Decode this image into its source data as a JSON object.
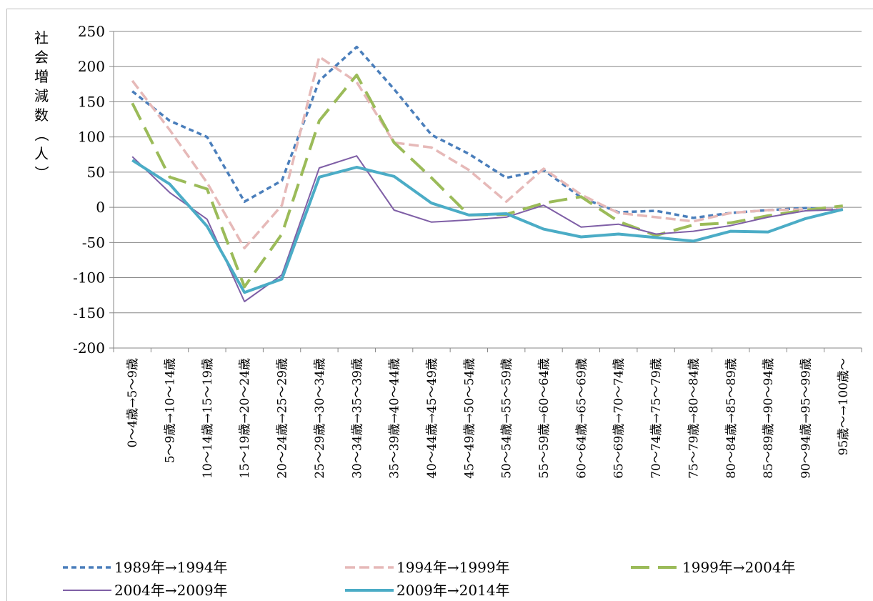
{
  "chart_data": {
    "type": "line",
    "title": "",
    "ylabel": "社会増減数（人）",
    "xlabel": "",
    "ylim": [
      -200,
      250
    ],
    "yticks": [
      250,
      200,
      150,
      100,
      50,
      0,
      -50,
      -100,
      -150,
      -200
    ],
    "yticks_text": [
      "250",
      "200",
      "150",
      "100",
      "50",
      "0",
      "-50",
      "-100",
      "-150",
      "-200"
    ],
    "grid": true,
    "legend_position": "bottom",
    "categories": [
      "0～4歳→5～9歳",
      "5～9歳→10～14歳",
      "10～14歳→15～19歳",
      "15～19歳→20～24歳",
      "20～24歳→25～29歳",
      "25～29歳→30～34歳",
      "30～34歳→35～39歳",
      "35～39歳→40～44歳",
      "40～44歳→45～49歳",
      "45～49歳→50～54歳",
      "50～54歳→55～59歳",
      "55～59歳→60～64歳",
      "60～64歳→65～69歳",
      "65～69歳→70～74歳",
      "70～74歳→75～79歳",
      "75～79歳→80～84歳",
      "80～84歳→85～89歳",
      "85～89歳→90～94歳",
      "90～94歳→95～99歳",
      "95歳～→100歳～"
    ],
    "series": [
      {
        "name": "1989年→1994年",
        "color": "#4a7ebb",
        "style": "dotted",
        "values": [
          165,
          123,
          100,
          8,
          38,
          180,
          228,
          168,
          103,
          76,
          42,
          53,
          14,
          -7,
          -5,
          -15,
          -8,
          -4,
          -1,
          -4
        ]
      },
      {
        "name": "1994年→1999年",
        "color": "#e6b9b8",
        "style": "dashed",
        "values": [
          180,
          110,
          35,
          -58,
          3,
          214,
          178,
          92,
          85,
          53,
          8,
          55,
          18,
          -8,
          -14,
          -20,
          -8,
          -4,
          -3,
          -2
        ]
      },
      {
        "name": "1999年→2004年",
        "color": "#9bbb59",
        "style": "longdash",
        "values": [
          148,
          43,
          26,
          -113,
          -38,
          123,
          188,
          92,
          42,
          -11,
          -10,
          6,
          15,
          -20,
          -40,
          -25,
          -22,
          -12,
          -4,
          2
        ]
      },
      {
        "name": "2004年→2009年",
        "color": "#7f5fa6",
        "style": "thin",
        "values": [
          72,
          21,
          -17,
          -134,
          -96,
          56,
          73,
          -4,
          -21,
          -18,
          -14,
          3,
          -28,
          -24,
          -38,
          -34,
          -26,
          -14,
          -5,
          -3
        ]
      },
      {
        "name": "2009年→2014年",
        "color": "#4bacc6",
        "style": "thick",
        "values": [
          67,
          33,
          -27,
          -121,
          -102,
          43,
          57,
          44,
          6,
          -11,
          -9,
          -31,
          -42,
          -38,
          -43,
          -48,
          -34,
          -35,
          -16,
          -3
        ]
      }
    ]
  }
}
